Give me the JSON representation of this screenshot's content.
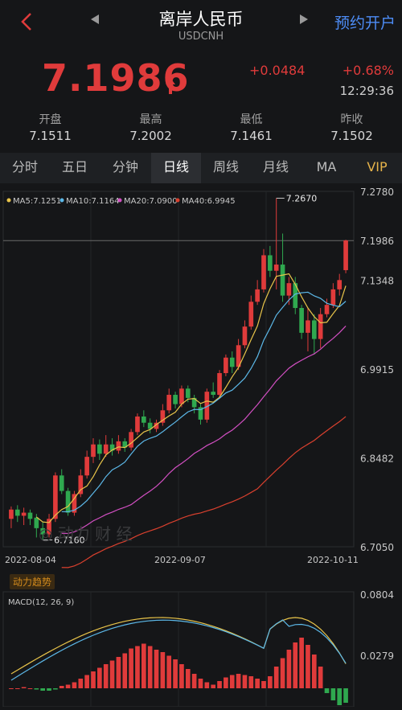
{
  "header": {
    "title": "离岸人民币",
    "subtitle": "USDCNH",
    "open_account": "预约开户"
  },
  "quote": {
    "price": "7.1986",
    "change": "+0.0484",
    "change_pct": "+0.68%",
    "time": "12:29:36"
  },
  "stats": [
    {
      "label": "开盘",
      "value": "7.1511"
    },
    {
      "label": "最高",
      "value": "7.2002"
    },
    {
      "label": "最低",
      "value": "7.1461"
    },
    {
      "label": "昨收",
      "value": "7.1502"
    }
  ],
  "tabs": [
    {
      "label": "分时"
    },
    {
      "label": "五日"
    },
    {
      "label": "分钟"
    },
    {
      "label": "日线"
    },
    {
      "label": "周线"
    },
    {
      "label": "月线"
    },
    {
      "label": "MA"
    },
    {
      "label": "VIP"
    }
  ],
  "colors": {
    "up": "#e03b3b",
    "down": "#2fa84f",
    "ma5": "#e8c44a",
    "ma10": "#5cb8e8",
    "ma20": "#d24fc2",
    "ma40": "#d9402e"
  },
  "chart_data": {
    "type": "candlestick",
    "ma_legend": [
      "MA5:7.1251",
      "MA10:7.1164",
      "MA20:7.0900",
      "MA40:6.9945"
    ],
    "y_ticks": [
      "7.2780",
      "7.1986",
      "7.1348",
      "6.9915",
      "6.8482",
      "6.7050"
    ],
    "ylim": [
      6.705,
      7.278
    ],
    "x_ticks": [
      "2022-08-04",
      "2022-09-07",
      "2022-10-11"
    ],
    "high_label": "7.2670",
    "low_label": "6.7160",
    "current_label": "7.1986",
    "candles": [
      [
        6.75,
        6.765,
        6.77,
        6.735
      ],
      [
        6.765,
        6.755,
        6.772,
        6.745
      ],
      [
        6.755,
        6.76,
        6.768,
        6.74
      ],
      [
        6.76,
        6.75,
        6.765,
        6.74
      ],
      [
        6.752,
        6.735,
        6.758,
        6.72
      ],
      [
        6.735,
        6.725,
        6.745,
        6.716
      ],
      [
        6.725,
        6.75,
        6.758,
        6.72
      ],
      [
        6.75,
        6.82,
        6.825,
        6.745
      ],
      [
        6.82,
        6.795,
        6.83,
        6.79
      ],
      [
        6.795,
        6.76,
        6.8,
        6.755
      ],
      [
        6.76,
        6.79,
        6.795,
        6.755
      ],
      [
        6.79,
        6.82,
        6.83,
        6.785
      ],
      [
        6.82,
        6.85,
        6.86,
        6.815
      ],
      [
        6.85,
        6.87,
        6.88,
        6.84
      ],
      [
        6.87,
        6.855,
        6.878,
        6.845
      ],
      [
        6.855,
        6.87,
        6.885,
        6.85
      ],
      [
        6.87,
        6.86,
        6.88,
        6.852
      ],
      [
        6.86,
        6.875,
        6.885,
        6.855
      ],
      [
        6.875,
        6.865,
        6.88,
        6.858
      ],
      [
        6.865,
        6.89,
        6.895,
        6.86
      ],
      [
        6.89,
        6.915,
        6.92,
        6.885
      ],
      [
        6.915,
        6.905,
        6.925,
        6.898
      ],
      [
        6.905,
        6.895,
        6.912,
        6.888
      ],
      [
        6.895,
        6.905,
        6.91,
        6.89
      ],
      [
        6.905,
        6.925,
        6.935,
        6.9
      ],
      [
        6.925,
        6.95,
        6.96,
        6.92
      ],
      [
        6.95,
        6.935,
        6.955,
        6.928
      ],
      [
        6.935,
        6.96,
        6.965,
        6.93
      ],
      [
        6.96,
        6.945,
        6.965,
        6.938
      ],
      [
        6.945,
        6.93,
        6.95,
        6.92
      ],
      [
        6.93,
        6.91,
        6.935,
        6.902
      ],
      [
        6.91,
        6.955,
        6.96,
        6.905
      ],
      [
        6.955,
        6.95,
        6.97,
        6.945
      ],
      [
        6.95,
        6.985,
        6.99,
        6.945
      ],
      [
        6.985,
        7.01,
        7.015,
        6.98
      ],
      [
        7.01,
        6.995,
        7.02,
        6.985
      ],
      [
        6.995,
        7.03,
        7.04,
        6.99
      ],
      [
        7.03,
        7.06,
        7.07,
        7.025
      ],
      [
        7.06,
        7.1,
        7.11,
        7.055
      ],
      [
        7.1,
        7.12,
        7.135,
        7.095
      ],
      [
        7.12,
        7.175,
        7.185,
        7.115
      ],
      [
        7.175,
        7.15,
        7.19,
        7.14
      ],
      [
        7.15,
        7.16,
        7.267,
        7.12
      ],
      [
        7.16,
        7.11,
        7.21,
        7.1
      ],
      [
        7.11,
        7.13,
        7.14,
        7.095
      ],
      [
        7.13,
        7.09,
        7.14,
        7.08
      ],
      [
        7.09,
        7.05,
        7.095,
        7.04
      ],
      [
        7.05,
        7.07,
        7.09,
        7.02
      ],
      [
        7.07,
        7.04,
        7.08,
        7.015
      ],
      [
        7.04,
        7.08,
        7.09,
        7.025
      ],
      [
        7.08,
        7.095,
        7.105,
        7.075
      ],
      [
        7.095,
        7.12,
        7.13,
        7.09
      ],
      [
        7.12,
        7.135,
        7.145,
        7.11
      ],
      [
        7.151,
        7.199,
        7.2,
        7.146
      ]
    ],
    "macd_label": "MACD(12, 26, 9)",
    "macd_ticks": [
      "0.0804",
      "0.0279"
    ]
  }
}
